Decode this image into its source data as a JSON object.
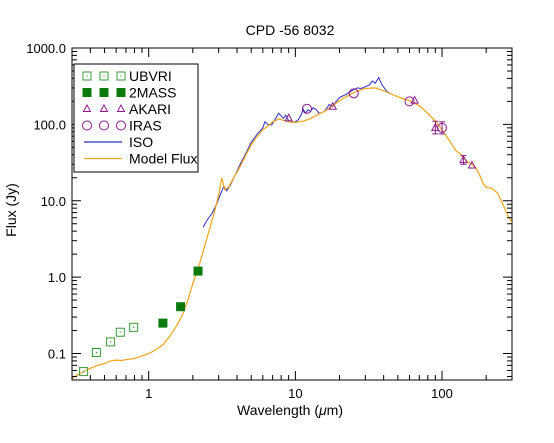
{
  "chart_data": {
    "type": "scatter",
    "title": "CPD -56 8032",
    "xlabel": "Wavelength (μm)",
    "ylabel": "Flux (Jy)",
    "xscale": "log",
    "yscale": "log",
    "xlim": [
      0.3,
      300
    ],
    "ylim": [
      0.045,
      1000
    ],
    "grid": false,
    "legend_position": "top-left",
    "x_ticks": [
      {
        "value": 1,
        "label": "1"
      },
      {
        "value": 10,
        "label": "10"
      },
      {
        "value": 100,
        "label": "100"
      }
    ],
    "y_ticks": [
      {
        "value": 0.1,
        "label": "0.1"
      },
      {
        "value": 1,
        "label": "1.0"
      },
      {
        "value": 10,
        "label": "10.0"
      },
      {
        "value": 100,
        "label": "100.0"
      },
      {
        "value": 1000,
        "label": "1000.0"
      }
    ],
    "colors": {
      "ubvri": "#3a9a3a",
      "twomass": "#0b7a0b",
      "akari": "#8a1a8a",
      "iras": "#8a1a8a",
      "iso": "#2b2fc4",
      "model": "#f0a418"
    },
    "series": [
      {
        "name": "UBVRI",
        "kind": "marker",
        "marker": "square-open",
        "x": [
          0.36,
          0.44,
          0.55,
          0.64,
          0.79
        ],
        "y": [
          0.058,
          0.103,
          0.142,
          0.19,
          0.22
        ]
      },
      {
        "name": "2MASS",
        "kind": "marker",
        "marker": "square-filled",
        "x": [
          1.25,
          1.65,
          2.17
        ],
        "y": [
          0.25,
          0.41,
          1.2
        ]
      },
      {
        "name": "AKARI",
        "kind": "marker",
        "marker": "triangle-open",
        "x": [
          9,
          18,
          65,
          90,
          140,
          160
        ],
        "y": [
          120,
          170,
          205,
          90,
          34,
          29
        ]
      },
      {
        "name": "IRAS",
        "kind": "marker",
        "marker": "circle-open",
        "x": [
          12,
          25,
          60,
          100
        ],
        "y": [
          160,
          255,
          200,
          90
        ]
      },
      {
        "name": "ISO",
        "kind": "line",
        "x": [
          2.35,
          2.5,
          2.7,
          2.9,
          3.1,
          3.25,
          3.4,
          3.6,
          3.9,
          4.2,
          4.6,
          5.0,
          5.5,
          6.0,
          6.2,
          6.5,
          6.9,
          7.3,
          7.7,
          8.0,
          8.3,
          8.6,
          9.0,
          9.5,
          10.0,
          10.5,
          11.0,
          11.3,
          11.7,
          12.2,
          12.7,
          13.2,
          13.8,
          14.5,
          15.2,
          16.0,
          17.0,
          18.0,
          19.0,
          20.0,
          21.0,
          22.0,
          23.5,
          25.0,
          26.5,
          28.0,
          30.0,
          32.0,
          33.5,
          35.0,
          37.0,
          39.0,
          42.0,
          45.0
        ],
        "y": [
          4.5,
          5.6,
          6.8,
          9.0,
          12.5,
          15.5,
          13.5,
          16.0,
          22.0,
          30.0,
          42.0,
          58.0,
          75.0,
          90.0,
          108.0,
          100.0,
          98.0,
          118.0,
          140.0,
          130.0,
          120.0,
          132.0,
          112.0,
          106.0,
          108.0,
          116.0,
          135.0,
          160.0,
          140.0,
          155.0,
          148.0,
          165.0,
          158.0,
          140.0,
          142.0,
          152.0,
          182.0,
          170.0,
          200.0,
          225.0,
          235.0,
          245.0,
          265.0,
          285.0,
          300.0,
          295.0,
          310.0,
          330.0,
          370.0,
          345.0,
          410.0,
          330.0,
          270.0,
          250.0
        ]
      },
      {
        "name": "Model Flux",
        "kind": "line",
        "x": [
          0.3,
          0.33,
          0.36,
          0.4,
          0.45,
          0.5,
          0.55,
          0.6,
          0.65,
          0.7,
          0.8,
          0.9,
          1.0,
          1.1,
          1.25,
          1.4,
          1.55,
          1.7,
          1.85,
          2.0,
          2.2,
          2.4,
          2.6,
          2.8,
          3.0,
          3.15,
          3.3,
          3.5,
          3.8,
          4.2,
          4.6,
          5.0,
          5.5,
          6.0,
          6.5,
          7.0,
          7.7,
          8.3,
          9.0,
          10.0,
          11.3,
          12.5,
          14.0,
          16.0,
          18.0,
          20.0,
          23.0,
          26.0,
          30.0,
          35.0,
          40.0,
          45.0,
          50.0,
          55.0,
          60.0,
          70.0,
          80.0,
          90.0,
          100.0,
          110.0,
          125.0,
          135.0,
          150.0,
          160.0,
          170.0,
          180.0,
          190.0,
          200.0,
          220.0,
          240.0,
          260.0,
          280.0,
          300.0
        ],
        "y": [
          0.047,
          0.053,
          0.058,
          0.064,
          0.07,
          0.074,
          0.08,
          0.082,
          0.081,
          0.083,
          0.086,
          0.093,
          0.1,
          0.11,
          0.13,
          0.17,
          0.23,
          0.32,
          0.5,
          0.82,
          1.4,
          2.5,
          4.3,
          7.0,
          12.0,
          20.0,
          14.0,
          15.0,
          20.0,
          28.0,
          40.0,
          54.0,
          70.0,
          85.0,
          95.0,
          108.0,
          118.0,
          113.0,
          108.0,
          106.0,
          110.0,
          118.0,
          132.0,
          150.0,
          175.0,
          205.0,
          240.0,
          270.0,
          295.0,
          300.0,
          275.0,
          250.0,
          230.0,
          215.0,
          205.0,
          175.0,
          140.0,
          110.0,
          85.0,
          65.0,
          45.0,
          40.0,
          32.0,
          30.0,
          27.0,
          22.0,
          17.0,
          15.0,
          14.5,
          12.5,
          9.0,
          6.5,
          5.2
        ]
      }
    ],
    "legend": [
      {
        "label": "UBVRI",
        "marker": "square-open",
        "color_key": "ubvri"
      },
      {
        "label": "2MASS",
        "marker": "square-filled",
        "color_key": "twomass"
      },
      {
        "label": "AKARI",
        "marker": "triangle-open",
        "color_key": "akari"
      },
      {
        "label": "IRAS",
        "marker": "circle-open",
        "color_key": "iras"
      },
      {
        "label": "ISO",
        "marker": "line",
        "color_key": "iso"
      },
      {
        "label": "Model Flux",
        "marker": "line",
        "color_key": "model"
      }
    ]
  }
}
